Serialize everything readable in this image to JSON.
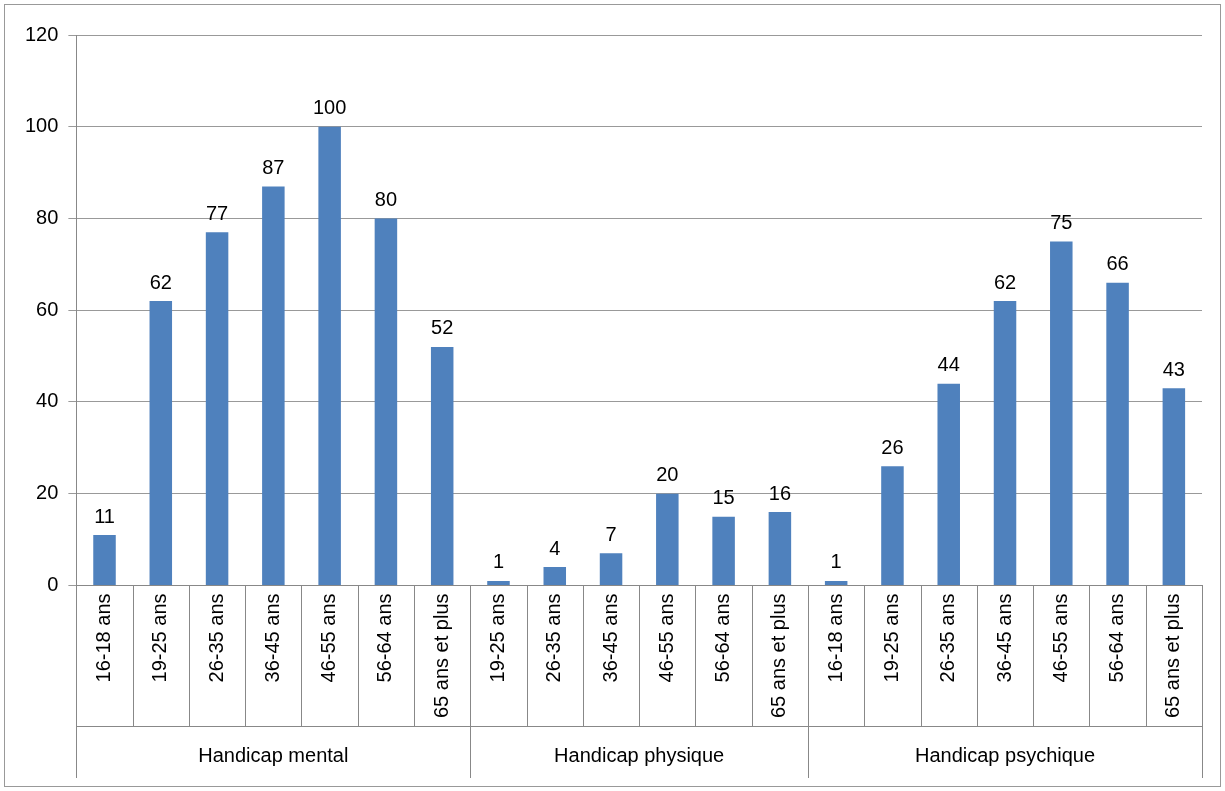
{
  "chart_data": {
    "type": "bar",
    "categories": [
      "16-18 ans",
      "19-25 ans",
      "26-35 ans",
      "36-45 ans",
      "46-55 ans",
      "56-64 ans",
      "65 ans et plus",
      "19-25 ans",
      "26-35 ans",
      "36-45 ans",
      "46-55 ans",
      "56-64 ans",
      "65 ans et plus",
      "16-18 ans",
      "19-25 ans",
      "26-35 ans",
      "36-45 ans",
      "46-55 ans",
      "56-64 ans",
      "65 ans et plus"
    ],
    "values": [
      11,
      62,
      77,
      87,
      100,
      80,
      52,
      1,
      4,
      7,
      20,
      15,
      16,
      1,
      26,
      44,
      62,
      75,
      66,
      43
    ],
    "color": "#4f81bd",
    "ylim": [
      0,
      120
    ],
    "yticks": [
      0,
      20,
      40,
      60,
      80,
      100,
      120
    ],
    "grid": "y",
    "legend": false,
    "data_labels": true,
    "annotations": [
      "Handicap mental",
      "Handicap physique",
      "Handicap psychique"
    ]
  }
}
